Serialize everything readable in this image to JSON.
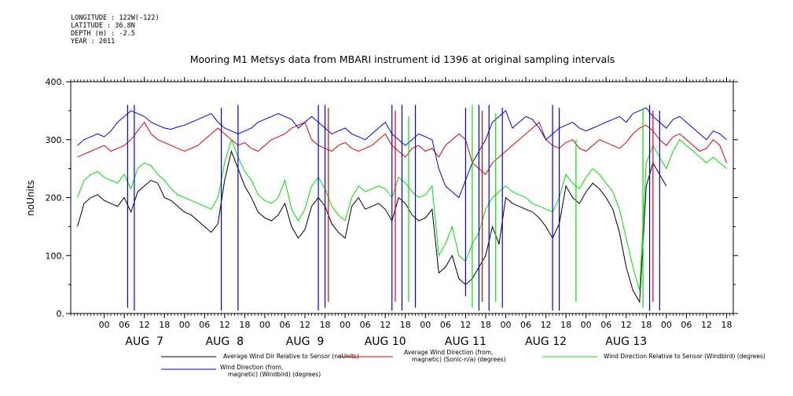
{
  "metadata": {
    "longitude": "LONGITUDE : 122W(-122)",
    "latitude": "LATITUDE : 36.8N",
    "depth": "DEPTH (m) : -2.5",
    "year": "YEAR : 2011"
  },
  "chart_data": {
    "type": "line",
    "title": "Mooring M1 Metsys data from MBARI instrument id 1396 at original sampling intervals",
    "ylabel": "noUnits",
    "xlabel": "",
    "ylim": [
      0,
      400
    ],
    "y_ticks": [
      0,
      100,
      200,
      300,
      400
    ],
    "y_tick_labels": [
      "0.",
      "100.",
      "200.",
      "300.",
      "400."
    ],
    "xlim_hours": [
      -10,
      188
    ],
    "x_hour_ticks": [
      0,
      6,
      12,
      18,
      24,
      30,
      36,
      42,
      48,
      54,
      60,
      66,
      72,
      78,
      84,
      90,
      96,
      102,
      108,
      114,
      120,
      126,
      132,
      138,
      144,
      150,
      156,
      162,
      168,
      174,
      180,
      186
    ],
    "x_hour_labels": [
      "00",
      "06",
      "12",
      "18",
      "00",
      "06",
      "12",
      "18",
      "00",
      "06",
      "12",
      "18",
      "00",
      "06",
      "12",
      "18",
      "00",
      "06",
      "12",
      "18",
      "00",
      "06",
      "12",
      "18",
      "00",
      "06",
      "12",
      "18",
      "00",
      "06",
      "12",
      "18"
    ],
    "day_labels": [
      {
        "hour": 12,
        "text": "AUG  7"
      },
      {
        "hour": 36,
        "text": "AUG  8"
      },
      {
        "hour": 60,
        "text": "AUG  9"
      },
      {
        "hour": 84,
        "text": "AUG 10"
      },
      {
        "hour": 108,
        "text": "AUG 11"
      },
      {
        "hour": 132,
        "text": "AUG 12"
      },
      {
        "hour": 156,
        "text": "AUG 13"
      }
    ],
    "series": [
      {
        "name": "Average Wind Dir Relative to Sensor (noUnits)",
        "color": "#000000",
        "x": [
          -8,
          -6,
          -4,
          -2,
          0,
          2,
          4,
          6,
          8,
          10,
          12,
          14,
          16,
          18,
          20,
          22,
          24,
          26,
          28,
          30,
          32,
          34,
          36,
          38,
          40,
          42,
          44,
          46,
          48,
          50,
          52,
          54,
          56,
          58,
          60,
          62,
          64,
          66,
          68,
          70,
          72,
          74,
          76,
          78,
          80,
          82,
          84,
          86,
          88,
          90,
          92,
          94,
          96,
          98,
          100,
          102,
          104,
          106,
          108,
          110,
          112,
          114,
          116,
          118,
          120,
          122,
          124,
          126,
          128,
          130,
          132,
          134,
          136,
          138,
          140,
          142,
          144,
          146,
          148,
          150,
          152,
          154,
          156,
          158,
          160,
          162,
          164,
          166,
          168
        ],
        "y": [
          150,
          190,
          200,
          205,
          195,
          190,
          185,
          200,
          175,
          210,
          220,
          230,
          225,
          200,
          195,
          185,
          175,
          170,
          160,
          150,
          140,
          155,
          230,
          280,
          250,
          220,
          200,
          175,
          165,
          160,
          170,
          190,
          150,
          130,
          145,
          185,
          200,
          185,
          155,
          140,
          130,
          185,
          200,
          180,
          185,
          190,
          180,
          160,
          200,
          190,
          170,
          160,
          165,
          180,
          70,
          80,
          100,
          60,
          50,
          60,
          80,
          100,
          150,
          120,
          200,
          190,
          185,
          180,
          175,
          165,
          150,
          130,
          155,
          220,
          200,
          190,
          210,
          225,
          215,
          200,
          180,
          140,
          80,
          40,
          20,
          220,
          260,
          240,
          220
        ]
      },
      {
        "name": "Average Wind Direction (from, magnetic) (Sonic-n/a) (degrees)",
        "color": "#e00000",
        "x": [
          -8,
          -6,
          -4,
          -2,
          0,
          2,
          4,
          6,
          8,
          10,
          12,
          14,
          16,
          18,
          20,
          22,
          24,
          26,
          28,
          30,
          32,
          34,
          36,
          38,
          40,
          42,
          44,
          46,
          48,
          50,
          52,
          54,
          56,
          58,
          60,
          62,
          64,
          66,
          68,
          70,
          72,
          74,
          76,
          78,
          80,
          82,
          84,
          86,
          88,
          90,
          92,
          94,
          96,
          98,
          100,
          102,
          104,
          106,
          108,
          110,
          112,
          114,
          116,
          118,
          120,
          122,
          124,
          126,
          128,
          130,
          132,
          134,
          136,
          138,
          140,
          142,
          144,
          146,
          148,
          150,
          152,
          154,
          156,
          158,
          160,
          162,
          164,
          166,
          168,
          170,
          172,
          174,
          176,
          178,
          180,
          182,
          184,
          186
        ],
        "y": [
          270,
          275,
          280,
          285,
          290,
          280,
          285,
          290,
          300,
          315,
          330,
          310,
          300,
          295,
          290,
          285,
          280,
          285,
          290,
          300,
          310,
          320,
          310,
          300,
          290,
          295,
          285,
          280,
          290,
          300,
          305,
          310,
          320,
          325,
          330,
          300,
          290,
          285,
          280,
          290,
          295,
          285,
          280,
          285,
          290,
          300,
          310,
          290,
          280,
          270,
          285,
          290,
          280,
          285,
          270,
          290,
          300,
          310,
          300,
          260,
          250,
          240,
          260,
          270,
          280,
          290,
          300,
          310,
          320,
          330,
          300,
          290,
          285,
          295,
          300,
          285,
          280,
          290,
          300,
          295,
          290,
          285,
          295,
          310,
          320,
          325,
          315,
          300,
          290,
          305,
          310,
          300,
          290,
          280,
          285,
          300,
          290,
          260
        ]
      },
      {
        "name": "Wind Direction Relative to Sensor (Windbird) (degrees)",
        "color": "#00e000",
        "x": [
          -8,
          -6,
          -4,
          -2,
          0,
          2,
          4,
          6,
          8,
          10,
          12,
          14,
          16,
          18,
          20,
          22,
          24,
          26,
          28,
          30,
          32,
          34,
          36,
          38,
          40,
          42,
          44,
          46,
          48,
          50,
          52,
          54,
          56,
          58,
          60,
          62,
          64,
          66,
          68,
          70,
          72,
          74,
          76,
          78,
          80,
          82,
          84,
          86,
          88,
          90,
          92,
          94,
          96,
          98,
          100,
          102,
          104,
          106,
          108,
          110,
          112,
          114,
          116,
          118,
          120,
          122,
          124,
          126,
          128,
          130,
          132,
          134,
          136,
          138,
          140,
          142,
          144,
          146,
          148,
          150,
          152,
          154,
          156,
          158,
          160,
          162,
          164,
          166,
          168,
          170,
          172,
          174,
          176,
          178,
          180,
          182,
          184,
          186
        ],
        "y": [
          200,
          230,
          240,
          245,
          235,
          230,
          225,
          240,
          215,
          250,
          260,
          255,
          240,
          230,
          215,
          205,
          200,
          195,
          190,
          185,
          180,
          200,
          260,
          300,
          270,
          245,
          230,
          205,
          195,
          190,
          200,
          230,
          180,
          160,
          180,
          220,
          235,
          215,
          185,
          170,
          160,
          200,
          220,
          210,
          215,
          220,
          215,
          200,
          235,
          225,
          210,
          200,
          205,
          220,
          100,
          120,
          150,
          100,
          90,
          120,
          140,
          180,
          200,
          210,
          220,
          210,
          205,
          200,
          190,
          185,
          180,
          175,
          200,
          240,
          225,
          215,
          235,
          250,
          240,
          225,
          210,
          180,
          130,
          80,
          40,
          260,
          290,
          270,
          250,
          280,
          300,
          290,
          280,
          270,
          260,
          270,
          260,
          250
        ]
      },
      {
        "name": "Wind Direction (from, magnetic) (Windbird) (degrees)",
        "color": "#0000e0",
        "x": [
          -8,
          -6,
          -4,
          -2,
          0,
          2,
          4,
          6,
          8,
          10,
          12,
          14,
          16,
          18,
          20,
          22,
          24,
          26,
          28,
          30,
          32,
          34,
          36,
          38,
          40,
          42,
          44,
          46,
          48,
          50,
          52,
          54,
          56,
          58,
          60,
          62,
          64,
          66,
          68,
          70,
          72,
          74,
          76,
          78,
          80,
          82,
          84,
          86,
          88,
          90,
          92,
          94,
          96,
          98,
          100,
          102,
          104,
          106,
          108,
          110,
          112,
          114,
          116,
          118,
          120,
          122,
          124,
          126,
          128,
          130,
          132,
          134,
          136,
          138,
          140,
          142,
          144,
          146,
          148,
          150,
          152,
          154,
          156,
          158,
          160,
          162,
          164,
          166,
          168,
          170,
          172,
          174,
          176,
          178,
          180,
          182,
          184,
          186
        ],
        "y": [
          290,
          300,
          305,
          310,
          305,
          315,
          330,
          340,
          350,
          345,
          340,
          330,
          325,
          320,
          318,
          322,
          325,
          330,
          335,
          340,
          345,
          330,
          320,
          315,
          310,
          315,
          320,
          330,
          335,
          340,
          345,
          340,
          335,
          320,
          330,
          340,
          330,
          320,
          310,
          315,
          320,
          310,
          305,
          300,
          310,
          320,
          330,
          310,
          300,
          290,
          300,
          310,
          305,
          300,
          250,
          220,
          210,
          200,
          230,
          260,
          280,
          300,
          330,
          340,
          350,
          320,
          330,
          340,
          335,
          320,
          300,
          310,
          320,
          325,
          330,
          320,
          315,
          320,
          325,
          330,
          335,
          340,
          330,
          345,
          350,
          355,
          340,
          330,
          320,
          335,
          340,
          330,
          320,
          310,
          300,
          315,
          310,
          300
        ]
      }
    ],
    "spikes": [
      {
        "hour": 7,
        "from": 10,
        "to": 360,
        "color": "#0000e0"
      },
      {
        "hour": 9,
        "from": 5,
        "to": 360,
        "color": "#0000e0"
      },
      {
        "hour": 35,
        "from": 5,
        "to": 355,
        "color": "#0000e0"
      },
      {
        "hour": 40,
        "from": 5,
        "to": 360,
        "color": "#0000e0"
      },
      {
        "hour": 64,
        "from": 5,
        "to": 360,
        "color": "#0000e0"
      },
      {
        "hour": 66,
        "from": 10,
        "to": 360,
        "color": "#0000e0"
      },
      {
        "hour": 67,
        "from": 20,
        "to": 355,
        "color": "#e00000"
      },
      {
        "hour": 86,
        "from": 5,
        "to": 360,
        "color": "#0000e0"
      },
      {
        "hour": 87,
        "from": 20,
        "to": 350,
        "color": "#e00000"
      },
      {
        "hour": 89,
        "from": 5,
        "to": 360,
        "color": "#0000e0"
      },
      {
        "hour": 91,
        "from": 20,
        "to": 340,
        "color": "#00e000"
      },
      {
        "hour": 93,
        "from": 10,
        "to": 360,
        "color": "#0000e0"
      },
      {
        "hour": 108,
        "from": 30,
        "to": 355,
        "color": "#0000e0"
      },
      {
        "hour": 110,
        "from": 10,
        "to": 360,
        "color": "#00e000"
      },
      {
        "hour": 112,
        "from": 5,
        "to": 360,
        "color": "#0000e0"
      },
      {
        "hour": 113,
        "from": 20,
        "to": 350,
        "color": "#e00000"
      },
      {
        "hour": 115,
        "from": 5,
        "to": 360,
        "color": "#0000e0"
      },
      {
        "hour": 117,
        "from": 20,
        "to": 345,
        "color": "#00e000"
      },
      {
        "hour": 119,
        "from": 10,
        "to": 355,
        "color": "#0000e0"
      },
      {
        "hour": 134,
        "from": 5,
        "to": 360,
        "color": "#0000e0"
      },
      {
        "hour": 136,
        "from": 5,
        "to": 355,
        "color": "#0000e0"
      },
      {
        "hour": 141,
        "from": 20,
        "to": 300,
        "color": "#00e000"
      },
      {
        "hour": 161,
        "from": 10,
        "to": 355,
        "color": "#00e000"
      },
      {
        "hour": 163,
        "from": 5,
        "to": 360,
        "color": "#0000e0"
      },
      {
        "hour": 164,
        "from": 20,
        "to": 350,
        "color": "#e00000"
      },
      {
        "hour": 166,
        "from": 5,
        "to": 350,
        "color": "#0000e0"
      }
    ],
    "legend": [
      {
        "text1": "Average Wind Dir Relative to Sensor (noUnits)",
        "text2": "",
        "color": "#000000"
      },
      {
        "text1": "Average Wind Direction (from,",
        "text2": "magnetic) (Sonic-n/a) (degrees)",
        "color": "#e00000"
      },
      {
        "text1": "Wind Direction Relative to Sensor (Windbird) (degrees)",
        "text2": "",
        "color": "#00e000"
      },
      {
        "text1": "Wind Direction (from,",
        "text2": "magnetic) (Windbird) (degrees)",
        "color": "#0000e0"
      }
    ]
  }
}
